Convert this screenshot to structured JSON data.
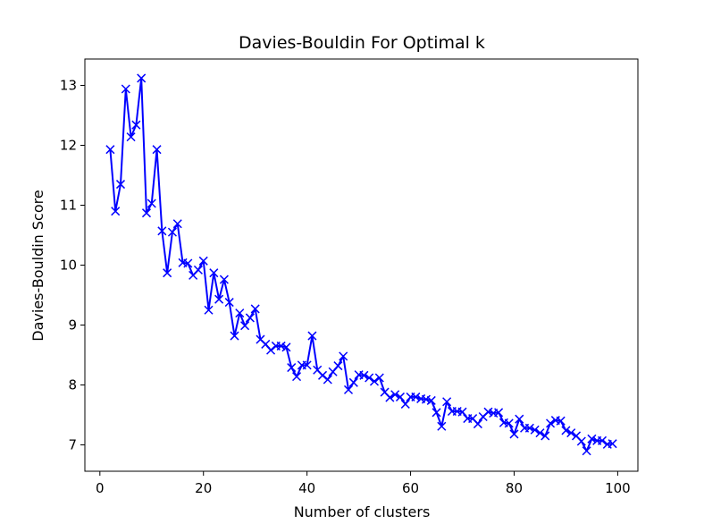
{
  "chart_data": {
    "type": "line",
    "title": "Davies-Bouldin For Optimal k",
    "xlabel": "Number of clusters",
    "ylabel": "Davies-Bouldin Score",
    "xlim": [
      -2.9,
      103.9
    ],
    "ylim": [
      6.56,
      13.44
    ],
    "xticks": [
      0,
      20,
      40,
      60,
      80,
      100
    ],
    "yticks": [
      7,
      8,
      9,
      10,
      11,
      12,
      13
    ],
    "grid": false,
    "marker": "x",
    "color": "#0000ff",
    "series": [
      {
        "x": [
          2,
          3,
          4,
          5,
          6,
          7,
          8,
          9,
          10,
          11,
          12,
          13,
          14,
          15,
          16,
          17,
          18,
          19,
          20,
          21,
          22,
          23,
          24,
          25,
          26,
          27,
          28,
          29,
          30,
          31,
          32,
          33,
          34,
          35,
          36,
          37,
          38,
          39,
          40,
          41,
          42,
          43,
          44,
          45,
          46,
          47,
          48,
          49,
          50,
          51,
          52,
          53,
          54,
          55,
          56,
          57,
          58,
          59,
          60,
          61,
          62,
          63,
          64,
          65,
          66,
          67,
          68,
          69,
          70,
          71,
          72,
          73,
          74,
          75,
          76,
          77,
          78,
          79,
          80,
          81,
          82,
          83,
          84,
          85,
          86,
          87,
          88,
          89,
          90,
          91,
          92,
          93,
          94,
          95,
          96,
          97,
          98,
          99
        ],
        "values": [
          11.93,
          10.9,
          11.35,
          12.94,
          12.14,
          12.34,
          13.12,
          10.87,
          11.03,
          11.93,
          10.57,
          9.87,
          10.55,
          10.69,
          10.04,
          10.03,
          9.83,
          9.92,
          10.07,
          9.25,
          9.87,
          9.43,
          9.76,
          9.38,
          8.82,
          9.2,
          8.99,
          9.12,
          9.27,
          8.76,
          8.68,
          8.58,
          8.65,
          8.65,
          8.63,
          8.29,
          8.14,
          8.33,
          8.33,
          8.82,
          8.25,
          8.16,
          8.09,
          8.22,
          8.32,
          8.48,
          7.92,
          8.04,
          8.17,
          8.16,
          8.12,
          8.06,
          8.12,
          7.88,
          7.79,
          7.84,
          7.8,
          7.68,
          7.8,
          7.8,
          7.77,
          7.76,
          7.74,
          7.54,
          7.31,
          7.72,
          7.56,
          7.56,
          7.55,
          7.44,
          7.44,
          7.35,
          7.47,
          7.55,
          7.53,
          7.54,
          7.37,
          7.36,
          7.18,
          7.43,
          7.28,
          7.28,
          7.25,
          7.2,
          7.15,
          7.36,
          7.41,
          7.4,
          7.24,
          7.2,
          7.15,
          7.06,
          6.9,
          7.1,
          7.07,
          7.07,
          7.01,
          7.02
        ]
      }
    ]
  }
}
